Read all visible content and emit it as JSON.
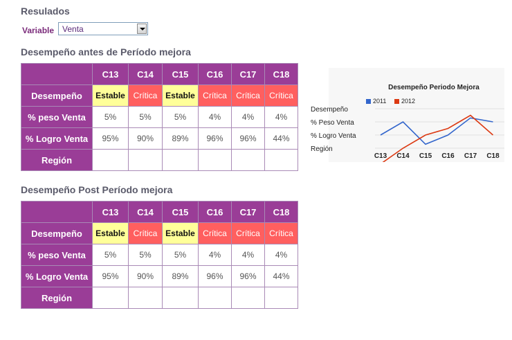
{
  "header": {
    "title": "Resulados"
  },
  "filter": {
    "label": "Variable",
    "selected": "Venta"
  },
  "columns": [
    "C13",
    "C14",
    "C15",
    "C16",
    "C17",
    "C18"
  ],
  "row_labels": [
    "Desempeño",
    "% peso Venta",
    "% Logro Venta",
    "Región"
  ],
  "sections": [
    {
      "title": "Desempeño antes de Período mejora",
      "desempeno": [
        "Estable",
        "Crítica",
        "Estable",
        "Crítica",
        "Crítica",
        "Crítica"
      ],
      "peso": [
        "5%",
        "5%",
        "5%",
        "4%",
        "4%",
        "4%"
      ],
      "logro": [
        "95%",
        "90%",
        "89%",
        "96%",
        "96%",
        "44%"
      ],
      "region": [
        "",
        "",
        "",
        "",
        "",
        ""
      ]
    },
    {
      "title": "Desempeño Post Período mejora",
      "desempeno": [
        "Estable",
        "Crítica",
        "Estable",
        "Crítica",
        "Crítica",
        "Crítica"
      ],
      "peso": [
        "5%",
        "5%",
        "5%",
        "4%",
        "4%",
        "4%"
      ],
      "logro": [
        "95%",
        "90%",
        "89%",
        "96%",
        "96%",
        "44%"
      ],
      "region": [
        "",
        "",
        "",
        "",
        "",
        ""
      ]
    }
  ],
  "colors": {
    "header_purple": "#9a3d97",
    "estable": "#ffff99",
    "critica": "#ff5f5f",
    "series_2011": "#3366cc",
    "series_2012": "#dc3912"
  },
  "chart_data": {
    "type": "line",
    "title": "Desempeño Periodo Mejora",
    "categories": [
      "C13",
      "C14",
      "C15",
      "C16",
      "C17",
      "C18"
    ],
    "y_categories": [
      "Desempeño",
      "% Peso Venta",
      "% Logro Venta",
      "Región"
    ],
    "series": [
      {
        "name": "2011",
        "values": [
          1,
          2,
          0.3,
          1,
          2.3,
          2
        ]
      },
      {
        "name": "2012",
        "values": [
          -1.2,
          0,
          1,
          1.5,
          2.5,
          1
        ]
      }
    ],
    "legend_position": "top-left"
  }
}
